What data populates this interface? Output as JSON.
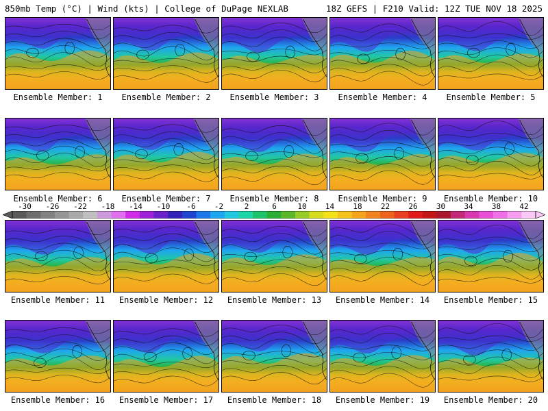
{
  "header": {
    "left": "850mb Temp (°C) | Wind (kts) | College of DuPage NEXLAB",
    "right": "18Z GEFS | F210 Valid: 12Z TUE NOV 18 2025"
  },
  "panels": [
    {
      "label": "Ensemble Member: 1"
    },
    {
      "label": "Ensemble Member: 2"
    },
    {
      "label": "Ensemble Member: 3"
    },
    {
      "label": "Ensemble Member: 4"
    },
    {
      "label": "Ensemble Member: 5"
    },
    {
      "label": "Ensemble Member: 6"
    },
    {
      "label": "Ensemble Member: 7"
    },
    {
      "label": "Ensemble Member: 8"
    },
    {
      "label": "Ensemble Member: 9"
    },
    {
      "label": "Ensemble Member: 10"
    },
    {
      "label": "Ensemble Member: 11"
    },
    {
      "label": "Ensemble Member: 12"
    },
    {
      "label": "Ensemble Member: 13"
    },
    {
      "label": "Ensemble Member: 14"
    },
    {
      "label": "Ensemble Member: 15"
    },
    {
      "label": "Ensemble Member: 16"
    },
    {
      "label": "Ensemble Member: 17"
    },
    {
      "label": "Ensemble Member: 18"
    },
    {
      "label": "Ensemble Member: 19"
    },
    {
      "label": "Ensemble Member: 20"
    }
  ],
  "colorbar": {
    "ticks": [
      "-30",
      "-26",
      "-22",
      "-18",
      "-14",
      "-10",
      "-6",
      "-2",
      "2",
      "6",
      "10",
      "14",
      "18",
      "22",
      "26",
      "30",
      "34",
      "38",
      "42"
    ],
    "colors": [
      "#5a5a5a",
      "#6e6e6e",
      "#828282",
      "#969696",
      "#aaaaaa",
      "#c0c0c0",
      "#cc99dd",
      "#e070f0",
      "#d02ce8",
      "#a020d8",
      "#6a22c8",
      "#3322b8",
      "#1f45d0",
      "#1e78e8",
      "#1fa6f0",
      "#22c8e0",
      "#1fd6a8",
      "#1fc46a",
      "#2aae34",
      "#5ab82a",
      "#98cc26",
      "#d8dc1e",
      "#f5e21a",
      "#f5c21e",
      "#f5a41e",
      "#f08420",
      "#ec6420",
      "#e84020",
      "#e01c1c",
      "#c41818",
      "#aa1830",
      "#c02a78",
      "#d838b0",
      "#e850d8",
      "#f070e8",
      "#f89cf0",
      "#fcc8f8"
    ]
  },
  "colors": {
    "cold": "#6a22c8",
    "mid": "#1fa6f0",
    "mild": "#2aae34",
    "warm": "#f5a41e",
    "contour": "#111111"
  }
}
